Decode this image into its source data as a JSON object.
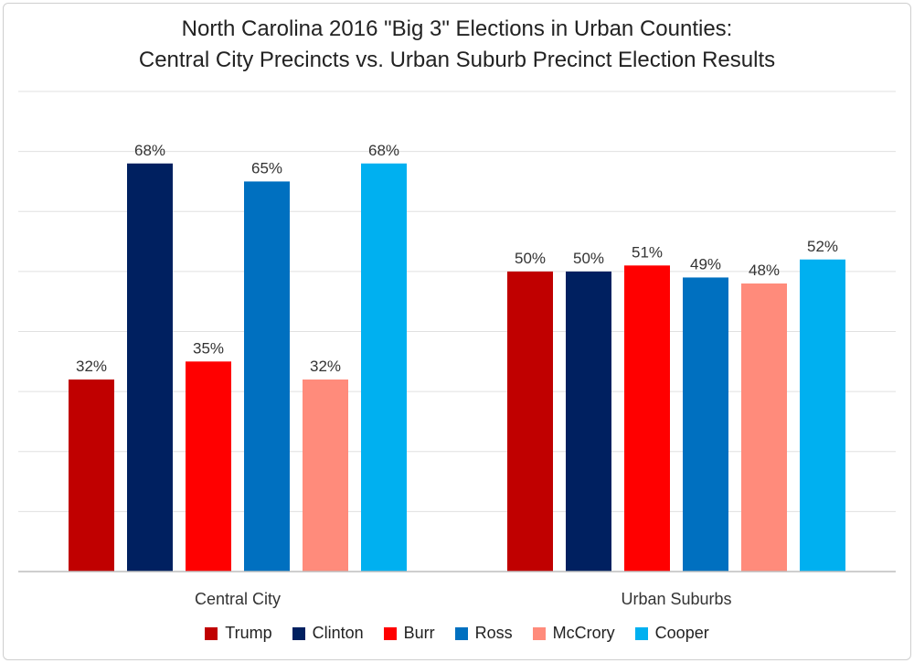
{
  "chart_data": {
    "type": "bar",
    "title_line1": "North Carolina 2016 \"Big 3\" Elections in Urban Counties:",
    "title_line2": "Central City Precincts vs. Urban Suburb Precinct Election Results",
    "categories": [
      "Central City",
      "Urban Suburbs"
    ],
    "series": [
      {
        "name": "Trump",
        "color": "#c00000",
        "values": [
          32,
          50
        ],
        "labels": [
          "32%",
          "50%"
        ]
      },
      {
        "name": "Clinton",
        "color": "#002060",
        "values": [
          68,
          50
        ],
        "labels": [
          "68%",
          "50%"
        ]
      },
      {
        "name": "Burr",
        "color": "#ff0000",
        "values": [
          35,
          51
        ],
        "labels": [
          "35%",
          "51%"
        ]
      },
      {
        "name": "Ross",
        "color": "#0070c0",
        "values": [
          65,
          49
        ],
        "labels": [
          "65%",
          "49%"
        ]
      },
      {
        "name": "McCrory",
        "color": "#ff8b7b",
        "values": [
          32,
          48
        ],
        "labels": [
          "32%",
          "48%"
        ]
      },
      {
        "name": "Cooper",
        "color": "#00b0f0",
        "values": [
          68,
          52
        ],
        "labels": [
          "68%",
          "52%"
        ]
      }
    ],
    "ylim": [
      0,
      80
    ],
    "grid": true,
    "legend_position": "bottom"
  }
}
